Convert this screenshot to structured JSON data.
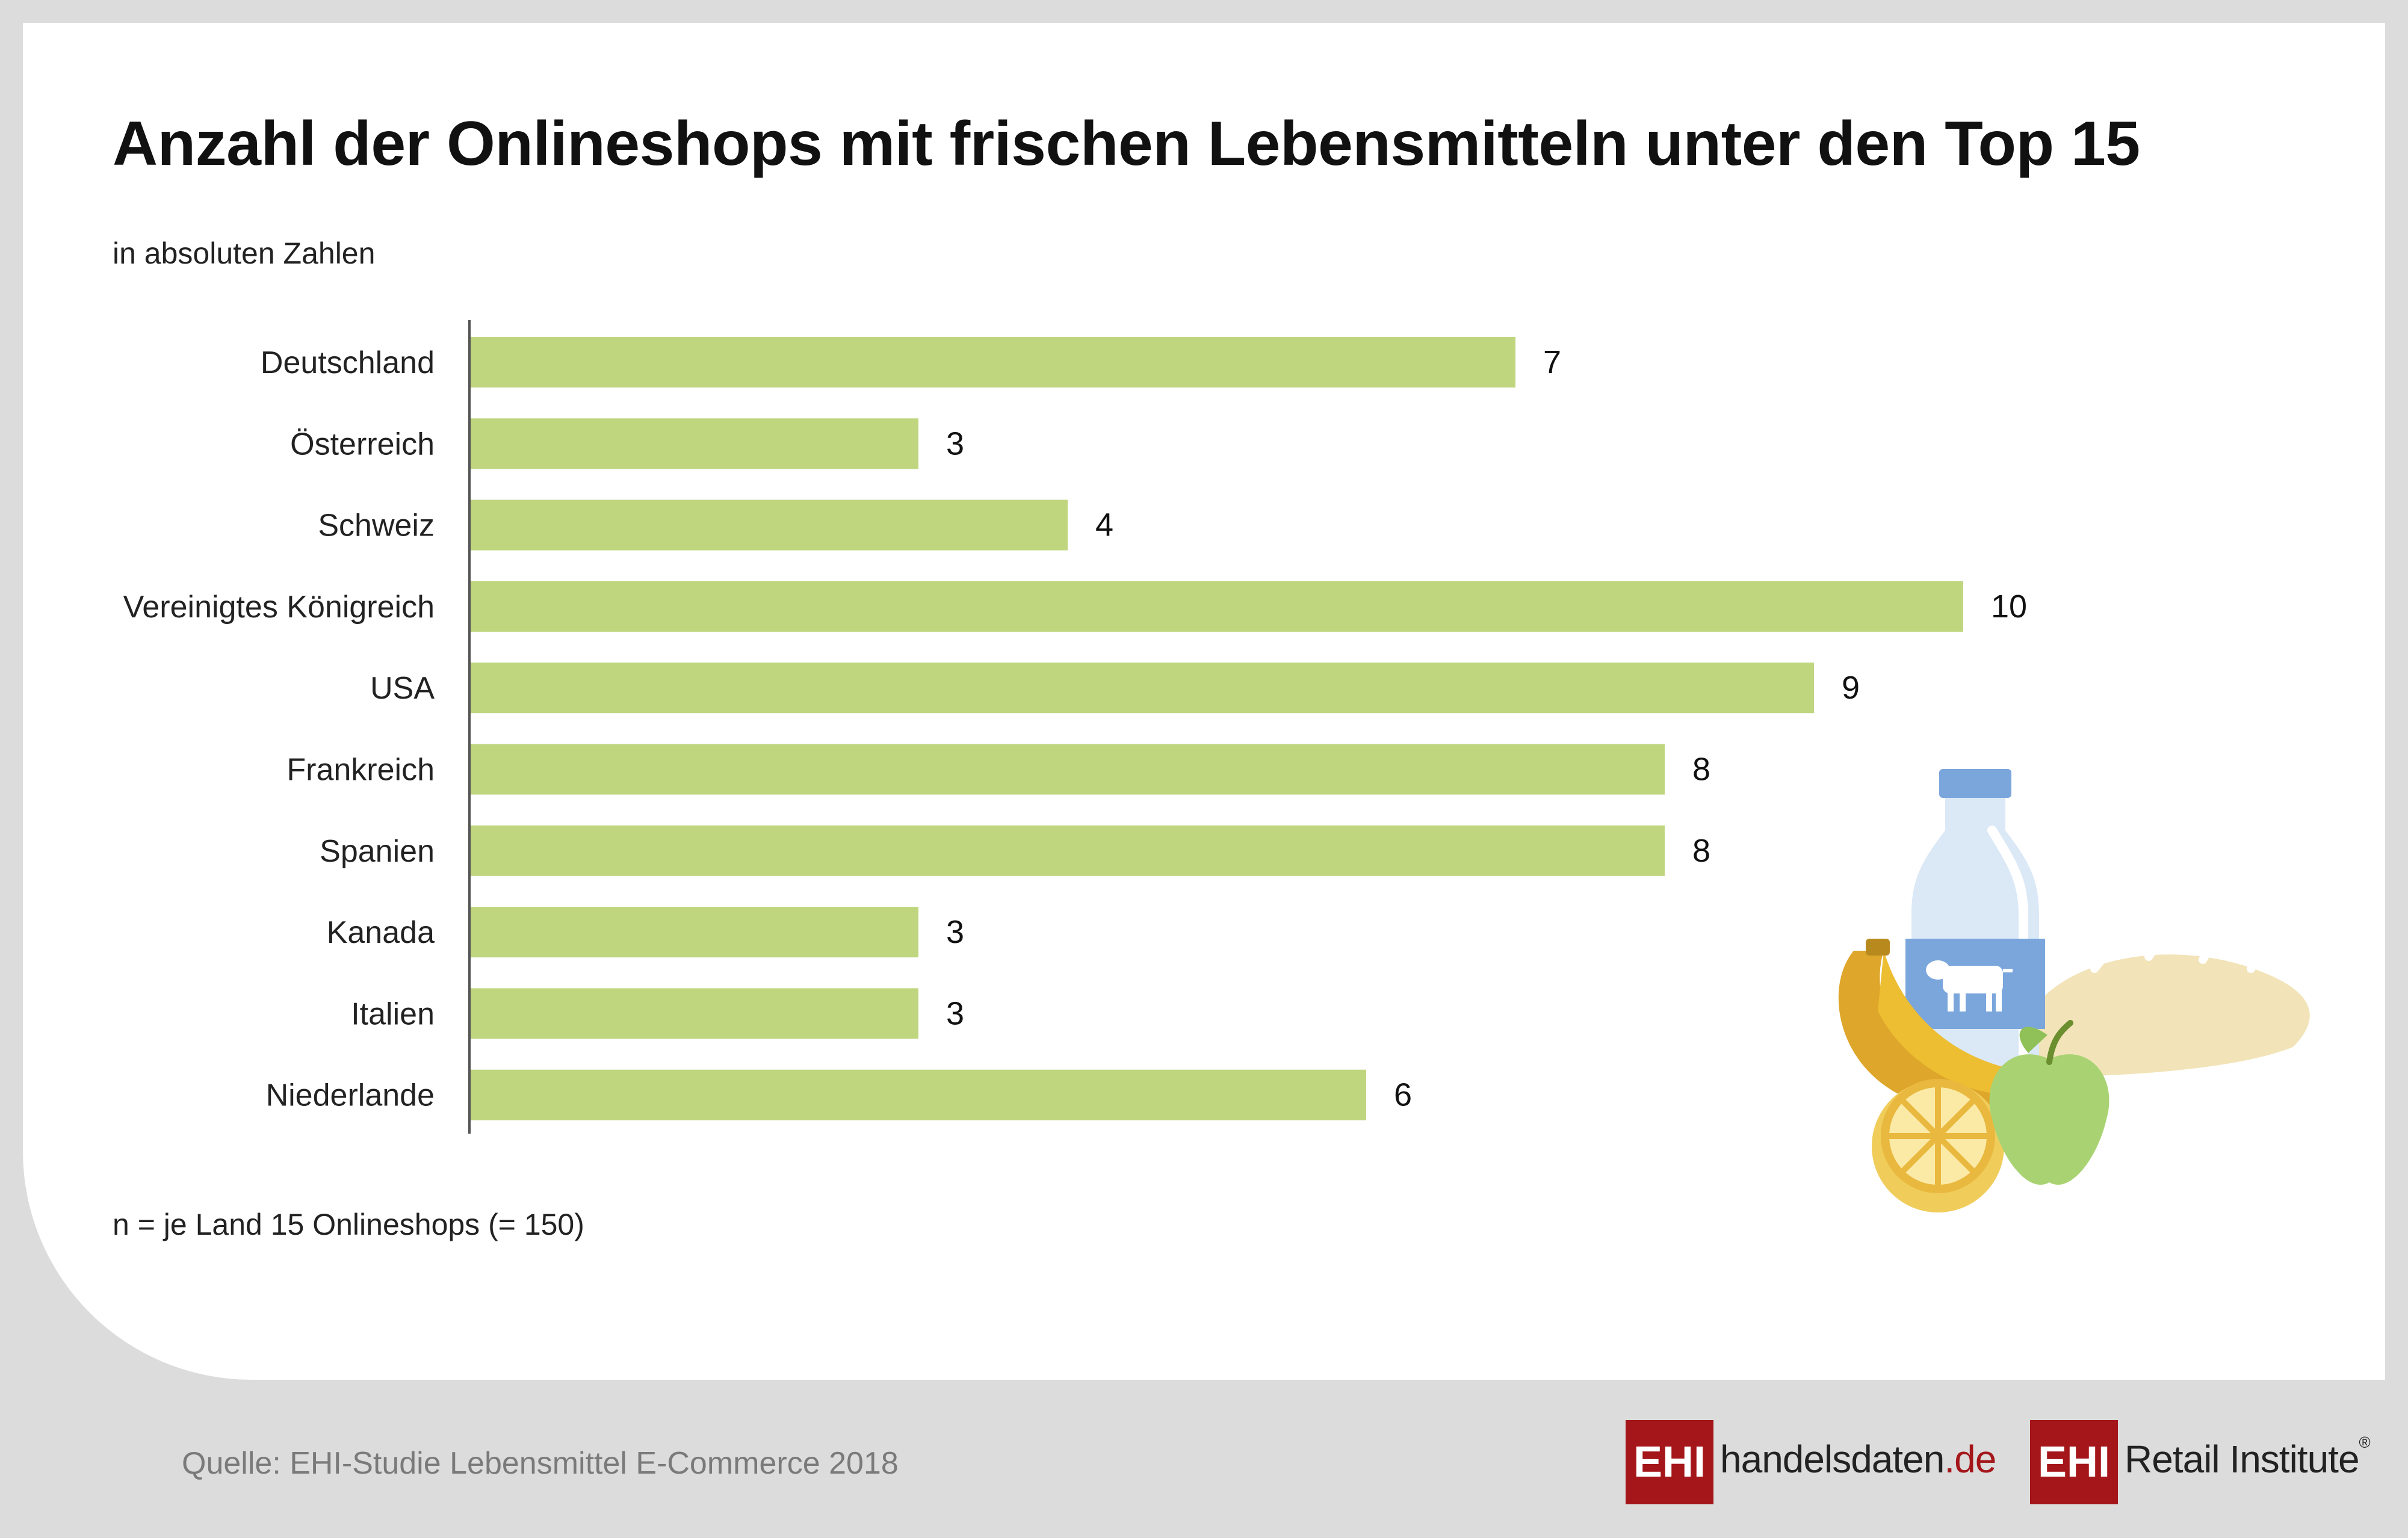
{
  "header": {
    "title": "Anzahl der Onlineshops mit frischen Lebensmitteln unter den Top 15",
    "subtitle": "in absoluten Zahlen"
  },
  "chart_data": {
    "type": "bar",
    "orientation": "horizontal",
    "title": "Anzahl der Onlineshops mit frischen Lebensmitteln unter den Top 15",
    "subtitle": "in absoluten Zahlen",
    "categories": [
      "Deutschland",
      "Österreich",
      "Schweiz",
      "Vereinigtes Königreich",
      "USA",
      "Frankreich",
      "Spanien",
      "Kanada",
      "Italien",
      "Niederlande"
    ],
    "values": [
      7,
      3,
      4,
      10,
      9,
      8,
      8,
      3,
      3,
      6
    ],
    "xlim": [
      0,
      10
    ],
    "grid": false,
    "bar_color": "#bfd67f",
    "data_labels": true
  },
  "footnote": "n = je Land 15 Onlineshops (= 150)",
  "source": "Quelle: EHI-Studie Lebensmittel E-Commerce 2018",
  "logos": {
    "handelsdaten": {
      "box": "EHI",
      "name": "handelsdaten",
      "tld": ".de"
    },
    "retail": {
      "box": "EHI",
      "name": "Retail Institute",
      "mark": "®"
    }
  },
  "illustration": {
    "icons": [
      "milk-bottle-icon",
      "cow-icon",
      "banana-icon",
      "lemon-icon",
      "apple-icon",
      "bread-icon"
    ]
  },
  "colors": {
    "bar": "#bfd67f",
    "brand_red": "#a4161a",
    "background": "#dcdcdc",
    "card": "#ffffff"
  }
}
